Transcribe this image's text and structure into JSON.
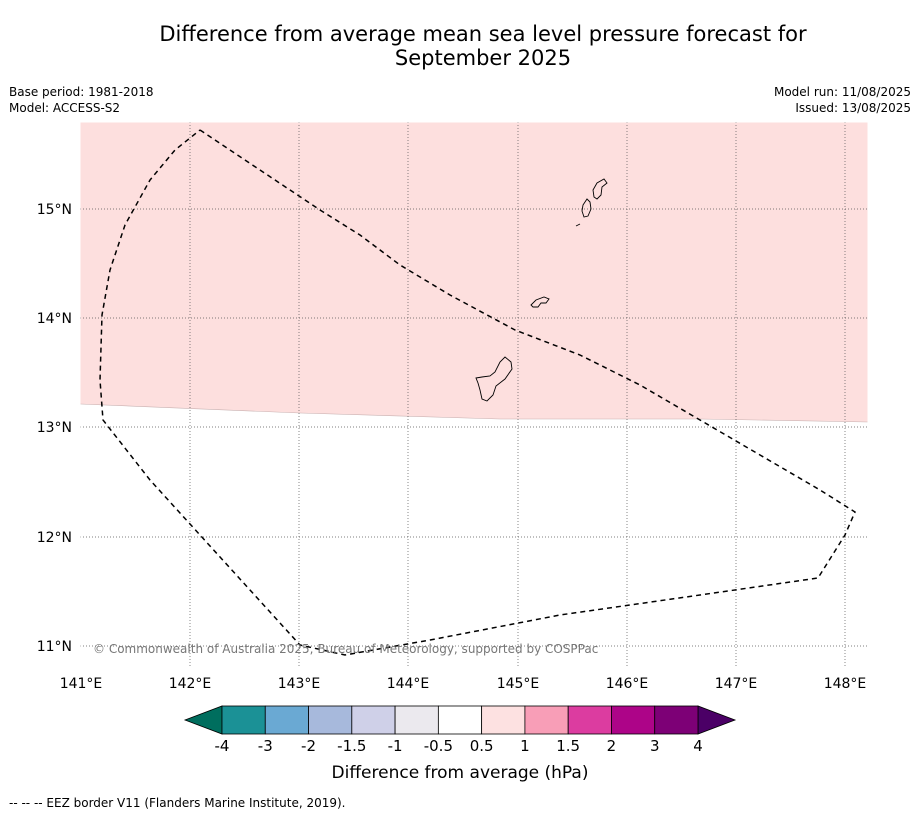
{
  "title_line1": "Difference from average mean sea level pressure forecast for",
  "title_line2": "September 2025",
  "base_period": "Base period: 1981-2018",
  "model": "Model: ACCESS-S2",
  "model_run": "Model run: 11/08/2025",
  "issued": "Issued: 13/08/2025",
  "copyright": "© Commonwealth of Australia 2025, Bureau of Meteorology, supported by COSPPac",
  "lon_labels": [
    "141°E",
    "142°E",
    "143°E",
    "144°E",
    "145°E",
    "146°E",
    "147°E",
    "148°E"
  ],
  "lat_labels": [
    "15°N",
    "14°N",
    "13°N",
    "12°N",
    "11°N"
  ],
  "colorbar": {
    "label": "Difference from average (hPa)",
    "ticks": [
      "-4",
      "-3",
      "-2",
      "-1.5",
      "-1",
      "-0.5",
      "0.5",
      "1",
      "1.5",
      "2",
      "3",
      "4"
    ],
    "colors": [
      "#1b9196",
      "#6aa9d3",
      "#a7b9dc",
      "#cfd0e8",
      "#ebe9ee",
      "#ffffff",
      "#fde1e1",
      "#f89eb7",
      "#dc3ca0",
      "#ad0488",
      "#7d0076"
    ],
    "under_color": "#006e5e",
    "over_color": "#4b0066"
  },
  "shading": {
    "north_of_boundary": "0.5 to 1",
    "color": "#fddfde"
  },
  "footer": "--  --  -- EEZ border V11 (Flanders Marine Institute, 2019)."
}
